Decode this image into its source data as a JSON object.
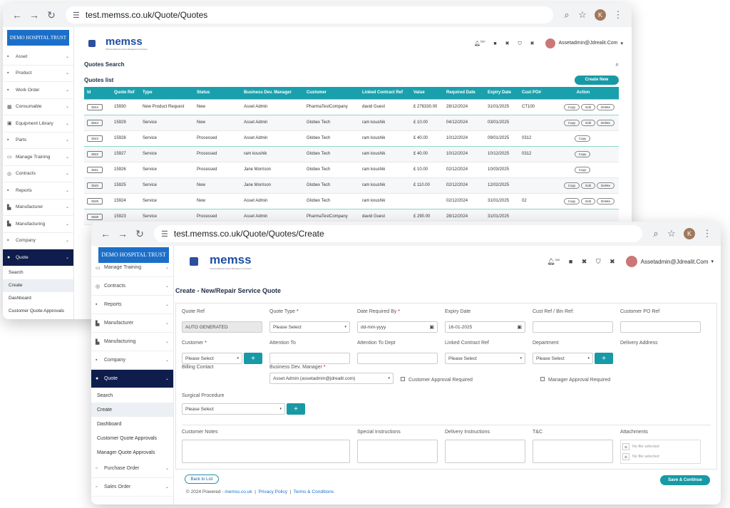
{
  "w1": {
    "url": "test.memss.co.uk/Quote/Quotes",
    "profile_initial": "K",
    "logo_text": "DEMO HOSPITAL TRUST",
    "brand": "memss",
    "brand_tag": "Total Healthcare Asset Management System",
    "bell_badge": "530",
    "user": "Assetadmin@Jdrealit.Com",
    "sidebar": [
      {
        "icon": "▪",
        "label": "Asset"
      },
      {
        "icon": "▪",
        "label": "Product"
      },
      {
        "icon": "▪",
        "label": "Work Order"
      },
      {
        "icon": "▦",
        "label": "Consumable"
      },
      {
        "icon": "▣",
        "label": "Equipment Library"
      },
      {
        "icon": "▪",
        "label": "Parts"
      },
      {
        "icon": "▭",
        "label": "Manage Training"
      },
      {
        "icon": "◎",
        "label": "Contracts"
      },
      {
        "icon": "▪",
        "label": "Reports"
      },
      {
        "icon": "▙",
        "label": "Manufacturer"
      },
      {
        "icon": "▙",
        "label": "Manufacturing"
      },
      {
        "icon": "▪",
        "label": "Company"
      },
      {
        "icon": "●",
        "label": "Quote"
      }
    ],
    "quote_sub": [
      "Search",
      "Create",
      "Dashboard",
      "Customer Quote Approvals"
    ],
    "search_title": "Quotes Search",
    "list_title": "Quotes list",
    "create_new": "Create New",
    "columns": [
      "Id",
      "Quote Ref",
      "Type",
      "Status",
      "Business Dev. Manager",
      "Customer",
      "Linked Contract Ref",
      "Value",
      "Required Date",
      "Expiry Date",
      "Cust PO#",
      "Action"
    ],
    "rows": [
      {
        "id": "3544",
        "ref": "15930",
        "type": "New Product Request",
        "status": "New",
        "mgr": "Asset Admin",
        "cust": "PharmaTestCompany",
        "contract": "david Guest",
        "value": "£ 276330.00",
        "req": "28/12/2024",
        "exp": "31/01/2025",
        "po": "CT100",
        "acts": [
          "Copy",
          "Edit",
          "Delete"
        ],
        "hl": true
      },
      {
        "id": "3544",
        "ref": "15929",
        "type": "Service",
        "status": "New",
        "mgr": "Asset Admin",
        "cust": "Globex Tech",
        "contract": "ram koushik",
        "value": "£ 10.00",
        "req": "04/12/2024",
        "exp": "03/01/2025",
        "po": "",
        "acts": [
          "Copy",
          "Edit",
          "Delete"
        ],
        "hl": false
      },
      {
        "id": "3543",
        "ref": "15928",
        "type": "Service",
        "status": "Processed",
        "mgr": "Asset Admin",
        "cust": "Globex Tech",
        "contract": "ram koushik",
        "value": "£ 40.00",
        "req": "10/12/2024",
        "exp": "09/01/2025",
        "po": "0312",
        "acts": [
          "Copy"
        ],
        "hl": true
      },
      {
        "id": "3542",
        "ref": "15927",
        "type": "Service",
        "status": "Processed",
        "mgr": "ram koushik",
        "cust": "Globex Tech",
        "contract": "ram koushik",
        "value": "£ 40.00",
        "req": "10/12/2024",
        "exp": "10/12/2025",
        "po": "0312",
        "acts": [
          "Copy"
        ],
        "hl": false
      },
      {
        "id": "3541",
        "ref": "15926",
        "type": "Service",
        "status": "Processed",
        "mgr": "Jane Morrison",
        "cust": "Globex Tech",
        "contract": "ram koushik",
        "value": "£ 10.00",
        "req": "02/12/2024",
        "exp": "10/03/2025",
        "po": "",
        "acts": [
          "Copy"
        ],
        "hl": false
      },
      {
        "id": "3540",
        "ref": "15925",
        "type": "Service",
        "status": "New",
        "mgr": "Jane Morrison",
        "cust": "Globex Tech",
        "contract": "ram koushik",
        "value": "£ 110.00",
        "req": "02/12/2024",
        "exp": "12/02/2025",
        "po": "",
        "acts": [
          "Copy",
          "Edit",
          "Delete"
        ],
        "hl": false
      },
      {
        "id": "3539",
        "ref": "15924",
        "type": "Service",
        "status": "New",
        "mgr": "Asset Admin",
        "cust": "Globex Tech",
        "contract": "ram koushik",
        "value": "",
        "req": "02/12/2024",
        "exp": "31/01/2025",
        "po": "02",
        "acts": [
          "Copy",
          "Edit",
          "Delete"
        ],
        "hl": true
      },
      {
        "id": "3538",
        "ref": "15923",
        "type": "Service",
        "status": "Processed",
        "mgr": "Asset Admin",
        "cust": "PharmaTestCompany",
        "contract": "david Guest",
        "value": "£ 290.00",
        "req": "28/12/2024",
        "exp": "31/01/2025",
        "po": "",
        "acts": [],
        "hl": false
      }
    ]
  },
  "w2": {
    "url": "test.memss.co.uk/Quote/Quotes/Create",
    "profile_initial": "K",
    "logo_text": "DEMO HOSPITAL TRUST",
    "brand": "memss",
    "brand_tag": "Total Healthcare Asset Management System",
    "bell_badge": "530",
    "user": "Assetadmin@Jdrealit.Com",
    "sidebar": [
      {
        "icon": "▭",
        "label": "Manage Training"
      },
      {
        "icon": "◎",
        "label": "Contracts"
      },
      {
        "icon": "▪",
        "label": "Reports"
      },
      {
        "icon": "▙",
        "label": "Manufacturer"
      },
      {
        "icon": "▙",
        "label": "Manufacturing"
      },
      {
        "icon": "▪",
        "label": "Company"
      },
      {
        "icon": "●",
        "label": "Quote"
      }
    ],
    "quote_sub": [
      "Search",
      "Create",
      "Dashboard",
      "Customer Quote Approvals",
      "Manager Quote Approvals"
    ],
    "sidebar_after": [
      {
        "icon": "▫",
        "label": "Purchase Order"
      },
      {
        "icon": "▫",
        "label": "Sales Order"
      }
    ],
    "title": "Create - New/Repair Service Quote",
    "row1": [
      {
        "label": "Quote Ref",
        "req": false,
        "value": "AUTO GENERATED",
        "kind": "ro"
      },
      {
        "label": "Quote Type",
        "req": true,
        "value": "Please Select",
        "kind": "select"
      },
      {
        "label": "Date Required By",
        "req": true,
        "value": "dd-mm-yyyy",
        "kind": "date"
      },
      {
        "label": "Expiry Date",
        "req": false,
        "value": "16-01-2025",
        "kind": "date"
      },
      {
        "label": "Cust Ref / Bin Ref:",
        "req": false,
        "value": "",
        "kind": "text"
      },
      {
        "label": "Customer PO Ref",
        "req": false,
        "value": "",
        "kind": "text"
      }
    ],
    "row2": [
      {
        "label": "Customer",
        "req": true,
        "value": "Please Select",
        "kind": "select-plus"
      },
      {
        "label": "Attention To",
        "req": false,
        "value": "",
        "kind": "text"
      },
      {
        "label": "Attention To Dept",
        "req": false,
        "value": "",
        "kind": "text"
      },
      {
        "label": "Linked Contract Ref",
        "req": false,
        "value": "Please Select",
        "kind": "select"
      },
      {
        "label": "Department",
        "req": false,
        "value": "Please Select",
        "kind": "select-plus"
      },
      {
        "label": "Delivery Address",
        "req": false,
        "value": "",
        "kind": "none"
      }
    ],
    "billing_contact": "Billing Contact",
    "bdm_label": "Business Dev. Manager",
    "bdm_value": "Asset Admin (assetadmin@jdrealit.com)",
    "cust_approval": "Customer Approval Required",
    "mgr_approval": "Manager Approval Required",
    "surgical_label": "Surgical Procedure",
    "surgical_value": "Please Select",
    "notes": [
      "Customer Notes",
      "Special Instructions",
      "Delivery Instructions",
      "T&C"
    ],
    "attachments_label": "Attachments",
    "no_file": "No file selected",
    "back": "Back to List",
    "save": "Save & Continue",
    "footer_pre": "© 2024 Powered - ",
    "footer_site": "memss.co.uk",
    "footer_privacy": "Privacy Policy",
    "footer_terms": "Terms & Conditions"
  }
}
